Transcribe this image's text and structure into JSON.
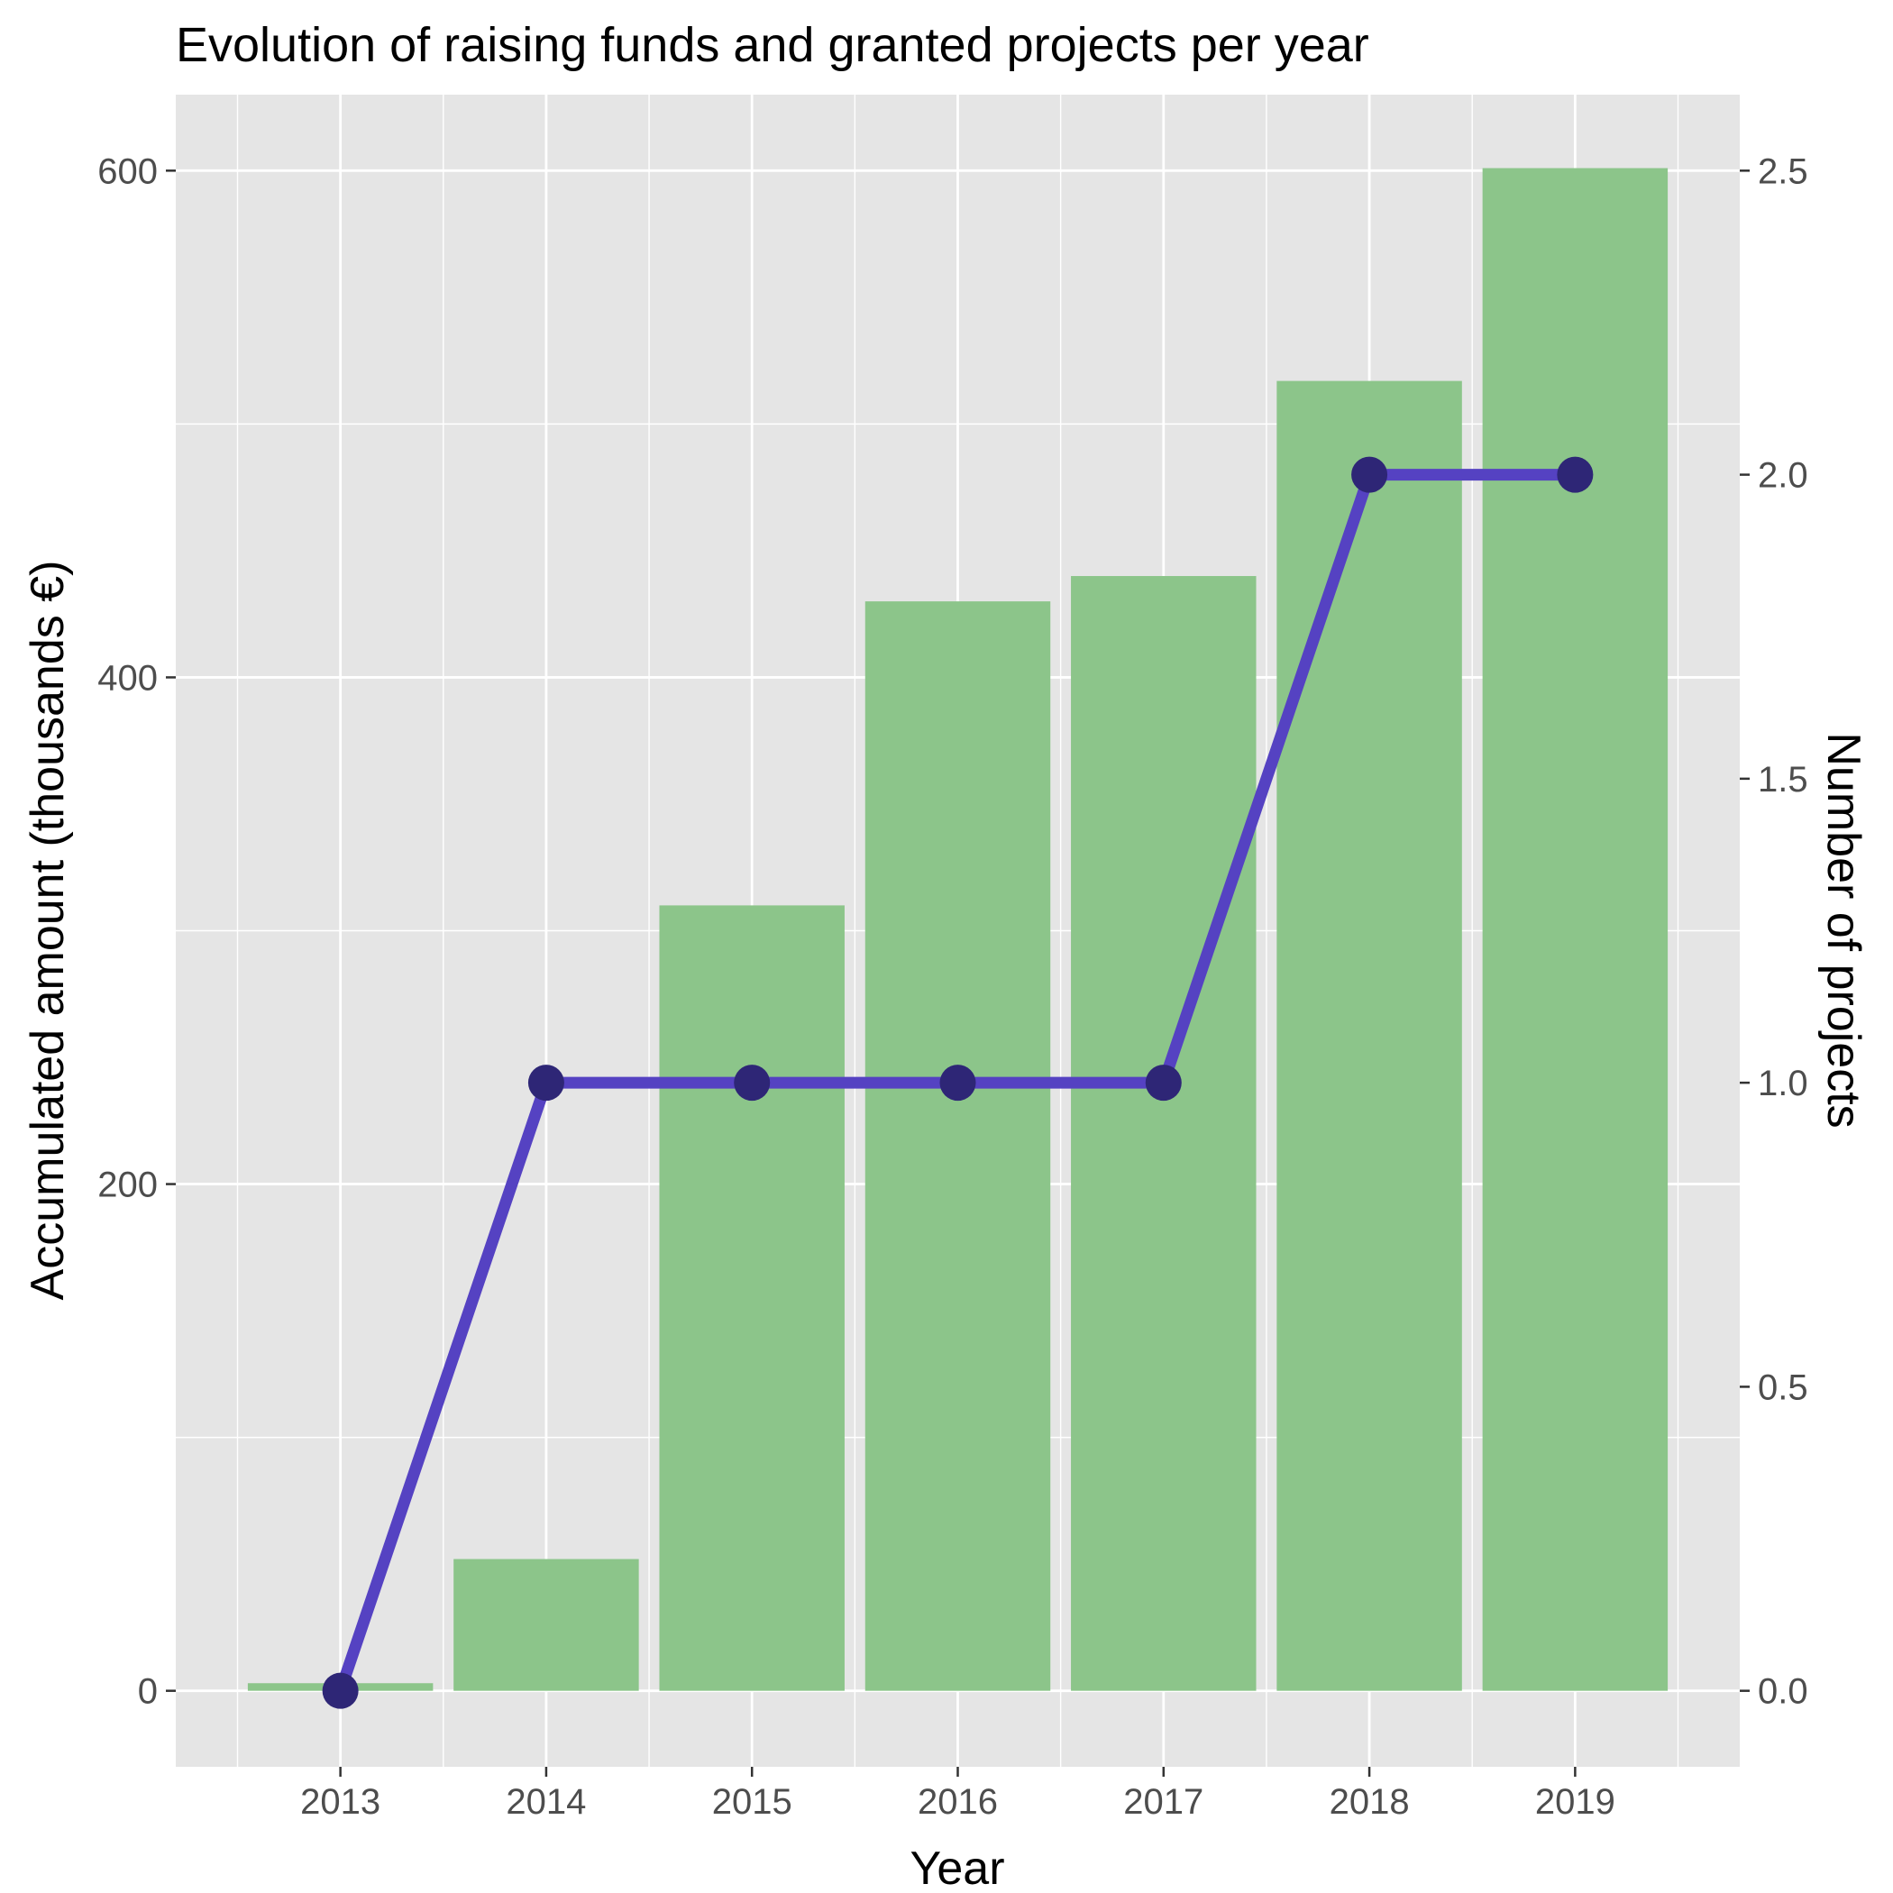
{
  "chart_data": {
    "type": "bar",
    "title": "Evolution of raising funds and granted projects per year",
    "xlabel": "Year",
    "ylabel": "Accumulated amount (thousands €)",
    "y2label": "Number of projects",
    "categories": [
      "2013",
      "2014",
      "2015",
      "2016",
      "2017",
      "2018",
      "2019"
    ],
    "series": [
      {
        "type": "bar",
        "axis": "left",
        "values": [
          3,
          52,
          310,
          430,
          440,
          517,
          601
        ]
      },
      {
        "type": "line",
        "axis": "right",
        "values": [
          0,
          1,
          1,
          1,
          1,
          2,
          2
        ]
      }
    ],
    "ylim": [
      -30,
      630
    ],
    "y2lim": [
      -0.125,
      2.625
    ],
    "yticks": [
      "0",
      "200",
      "400",
      "600"
    ],
    "y2ticks": [
      "0.0",
      "0.5",
      "1.0",
      "1.5",
      "2.0",
      "2.5"
    ],
    "grid": true,
    "colors": {
      "panel": "#e5e5e5",
      "grid": "#ffffff",
      "bar": "#8cc58a",
      "line": "#5542c2",
      "point": "#2e2676",
      "tick_label": "#4d4d4d",
      "tick_mark": "#333333"
    }
  }
}
